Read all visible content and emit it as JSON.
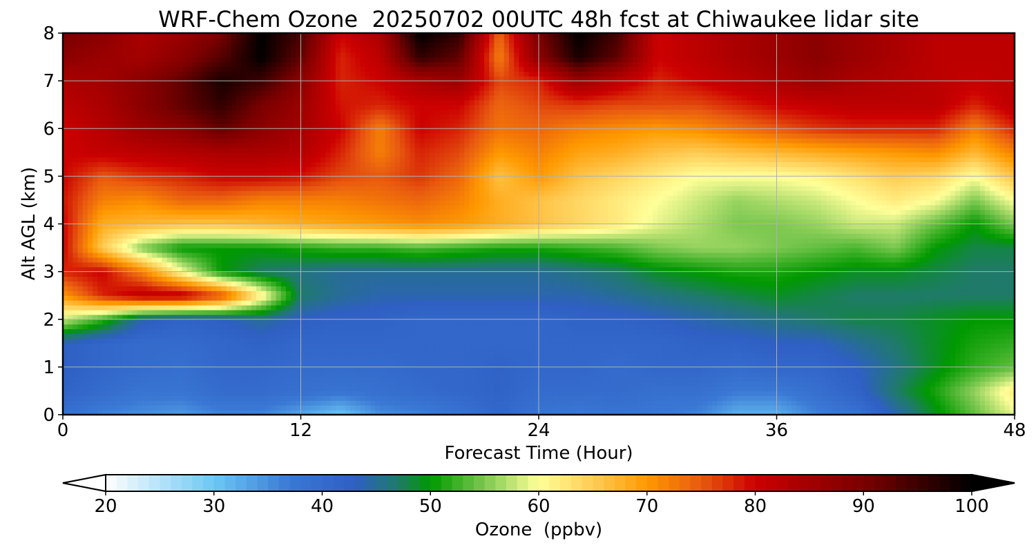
{
  "chart_data": {
    "type": "heatmap",
    "title": "WRF-Chem Ozone  20250702 00UTC 48h fcst at Chiwaukee lidar site",
    "xlabel": "Forecast Time (Hour)",
    "ylabel": "Alt AGL (km)",
    "xlim": [
      0,
      48
    ],
    "ylim": [
      0,
      8
    ],
    "xticks": [
      "0",
      "12",
      "24",
      "36",
      "48"
    ],
    "yticks": [
      "0",
      "1",
      "2",
      "3",
      "4",
      "5",
      "6",
      "7",
      "8"
    ],
    "grid": true,
    "colorbar": {
      "label": "Ozone  (ppbv)",
      "min": 20,
      "max": 100,
      "ticks": [
        "20",
        "30",
        "40",
        "50",
        "60",
        "70",
        "80",
        "90",
        "100"
      ],
      "extend": "both",
      "stops": [
        [
          20,
          "#ffffff"
        ],
        [
          30,
          "#6cc8f4"
        ],
        [
          37,
          "#3a78d4"
        ],
        [
          43,
          "#2f5fc4"
        ],
        [
          47,
          "#1f7a6a"
        ],
        [
          50,
          "#009900"
        ],
        [
          55,
          "#7cc850"
        ],
        [
          60,
          "#ffff99"
        ],
        [
          65,
          "#ffcc55"
        ],
        [
          70,
          "#ff9900"
        ],
        [
          75,
          "#e85a10"
        ],
        [
          80,
          "#cc0000"
        ],
        [
          90,
          "#7a0000"
        ],
        [
          100,
          "#000000"
        ]
      ]
    },
    "times": [
      0,
      2,
      4,
      6,
      8,
      10,
      12,
      14,
      16,
      18,
      20,
      22,
      24,
      26,
      28,
      30,
      32,
      34,
      36,
      38,
      40,
      42,
      44,
      46,
      48
    ],
    "altitudes": [
      0,
      0.5,
      1,
      1.5,
      2,
      2.5,
      3,
      3.5,
      4,
      4.5,
      5,
      5.5,
      6,
      6.5,
      7,
      7.5,
      8
    ],
    "values": [
      [
        39,
        36,
        35,
        34,
        36,
        36,
        33,
        30,
        35,
        36,
        38,
        41,
        38,
        37,
        38,
        37,
        36,
        32,
        32,
        36,
        38,
        44,
        49,
        54,
        59
      ],
      [
        42,
        40,
        38,
        38,
        40,
        40,
        39,
        38,
        39,
        40,
        41,
        42,
        40,
        40,
        40,
        39,
        39,
        37,
        37,
        39,
        42,
        47,
        51,
        56,
        62
      ],
      [
        43,
        41,
        40,
        39,
        41,
        41,
        40,
        40,
        40,
        41,
        41,
        42,
        41,
        41,
        40,
        41,
        41,
        40,
        41,
        41,
        43,
        46,
        49,
        52,
        54
      ],
      [
        43,
        41,
        40,
        40,
        41,
        42,
        41,
        41,
        41,
        41,
        41,
        41,
        41,
        41,
        41,
        41,
        42,
        42,
        43,
        43,
        45,
        47,
        49,
        51,
        52
      ],
      [
        58,
        52,
        44,
        42,
        43,
        45,
        43,
        42,
        42,
        41,
        41,
        41,
        41,
        42,
        42,
        43,
        44,
        45,
        46,
        47,
        48,
        48,
        49,
        50,
        50
      ],
      [
        70,
        78,
        82,
        82,
        76,
        62,
        47,
        45,
        44,
        44,
        44,
        44,
        44,
        44,
        45,
        46,
        47,
        48,
        49,
        48,
        47,
        47,
        47,
        47,
        47
      ],
      [
        78,
        80,
        72,
        60,
        50,
        47,
        46,
        45,
        45,
        45,
        45,
        45,
        45,
        46,
        47,
        49,
        50,
        51,
        51,
        50,
        49,
        49,
        48,
        47,
        47
      ],
      [
        80,
        65,
        55,
        50,
        50,
        50,
        51,
        52,
        52,
        53,
        52,
        51,
        51,
        52,
        53,
        55,
        56,
        56,
        55,
        54,
        53,
        55,
        50,
        48,
        48
      ],
      [
        80,
        68,
        67,
        66,
        66,
        67,
        68,
        69,
        70,
        71,
        70,
        68,
        66,
        64,
        62,
        59,
        57,
        55,
        55,
        56,
        58,
        58,
        54,
        50,
        55
      ],
      [
        79,
        72,
        71,
        74,
        74,
        72,
        72,
        72,
        73,
        74,
        72,
        68,
        66,
        64,
        62,
        60,
        58,
        56,
        57,
        58,
        60,
        62,
        60,
        55,
        60
      ],
      [
        80,
        75,
        77,
        78,
        80,
        80,
        79,
        76,
        75,
        77,
        74,
        66,
        70,
        66,
        64,
        62,
        60,
        60,
        60,
        61,
        63,
        65,
        64,
        60,
        66
      ],
      [
        80,
        81,
        82,
        83,
        84,
        84,
        83,
        78,
        72,
        78,
        76,
        70,
        72,
        69,
        68,
        66,
        65,
        66,
        67,
        68,
        69,
        70,
        71,
        67,
        72
      ],
      [
        80,
        83,
        86,
        88,
        92,
        88,
        85,
        80,
        72,
        80,
        78,
        73,
        74,
        72,
        71,
        70,
        71,
        73,
        75,
        77,
        78,
        78,
        78,
        72,
        78
      ],
      [
        82,
        84,
        88,
        92,
        96,
        90,
        86,
        79,
        78,
        80,
        80,
        74,
        76,
        77,
        76,
        76,
        76,
        78,
        80,
        81,
        82,
        82,
        82,
        78,
        82
      ],
      [
        84,
        85,
        88,
        92,
        98,
        95,
        88,
        78,
        80,
        84,
        86,
        76,
        78,
        86,
        82,
        78,
        80,
        82,
        84,
        86,
        84,
        83,
        82,
        81,
        82
      ],
      [
        88,
        86,
        85,
        88,
        93,
        100,
        92,
        78,
        82,
        96,
        92,
        72,
        88,
        98,
        92,
        80,
        82,
        84,
        86,
        88,
        86,
        84,
        82,
        82,
        82
      ],
      [
        90,
        88,
        84,
        86,
        90,
        100,
        94,
        80,
        84,
        100,
        96,
        74,
        90,
        100,
        94,
        80,
        82,
        84,
        86,
        88,
        86,
        84,
        82,
        82,
        82
      ]
    ]
  }
}
